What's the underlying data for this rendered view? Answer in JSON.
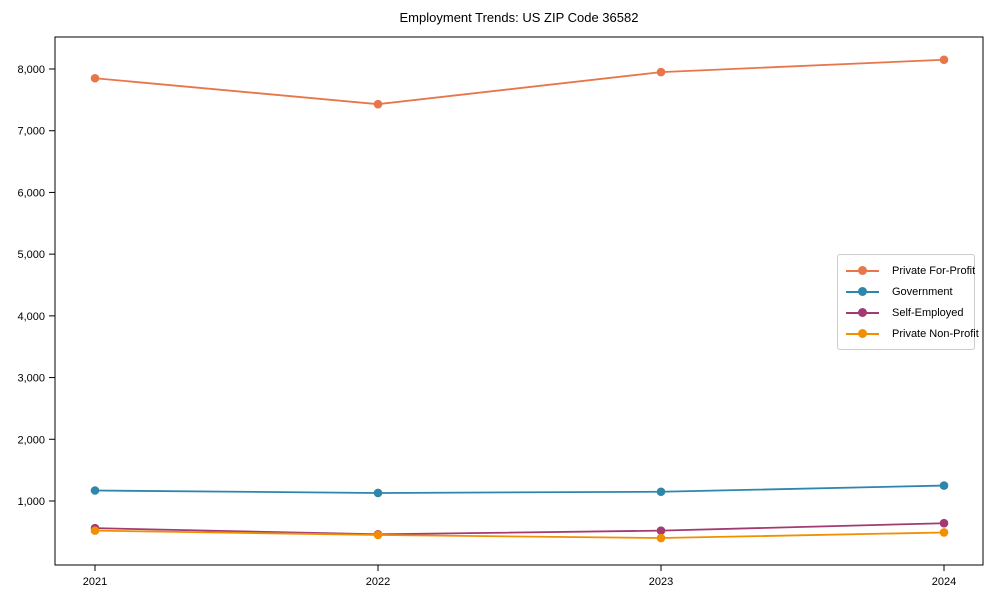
{
  "chart_data": {
    "type": "line",
    "title": "Employment Trends: US ZIP Code 36582",
    "xlabel": "",
    "ylabel": "",
    "x": [
      2021,
      2022,
      2023,
      2024
    ],
    "series": [
      {
        "name": "Private For-Profit",
        "color": "#e8764b",
        "values": [
          7850,
          7430,
          7950,
          8150
        ]
      },
      {
        "name": "Government",
        "color": "#2e86ab",
        "values": [
          1170,
          1130,
          1150,
          1250
        ]
      },
      {
        "name": "Self-Employed",
        "color": "#a23b72",
        "values": [
          560,
          460,
          520,
          640
        ]
      },
      {
        "name": "Private Non-Profit",
        "color": "#f18f01",
        "values": [
          520,
          450,
          400,
          490
        ]
      }
    ],
    "yticks": [
      1000,
      2000,
      3000,
      4000,
      5000,
      6000,
      7000,
      8000
    ],
    "ytick_labels": [
      "1,000",
      "2,000",
      "3,000",
      "4,000",
      "5,000",
      "6,000",
      "7,000",
      "8,000"
    ],
    "xtick_labels": [
      "2021",
      "2022",
      "2023",
      "2024"
    ],
    "ylim": [
      -40,
      8520
    ],
    "grid": false,
    "marker": "o",
    "legend_position": "center right",
    "axis_color": "#000000",
    "background_color": "#ffffff"
  }
}
